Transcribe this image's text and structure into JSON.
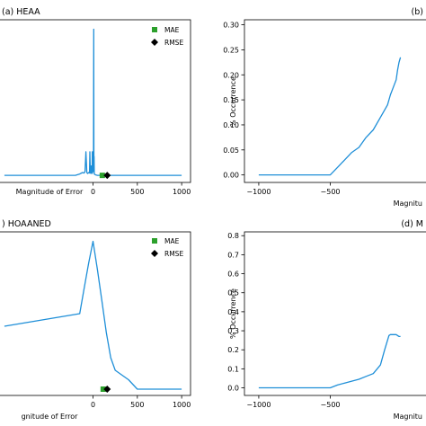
{
  "chart_data": [
    {
      "type": "line",
      "title": "(a) HEAA",
      "xlabel": "Magnitude of Error",
      "ylabel": "",
      "xlim": [
        -1100,
        1100
      ],
      "ylim": [
        -0.015,
        0.33
      ],
      "xticks": [
        0,
        500,
        1000
      ],
      "xtick_labels": [
        "0",
        "500",
        "1000"
      ],
      "yticks": [],
      "grid": false,
      "legend_position": "top-right",
      "series": [
        {
          "color": "#1f8fd8",
          "x": [
            -1000,
            -300,
            -200,
            -150,
            -120,
            -100,
            -90,
            -80,
            -70,
            -60,
            -50,
            -40,
            -35,
            -30,
            -25,
            -20,
            -15,
            -10,
            -8,
            -5,
            -2,
            0,
            2,
            5,
            8,
            10,
            12,
            14,
            20,
            30,
            50,
            100,
            200,
            500,
            1000
          ],
          "y": [
            0,
            0,
            0,
            0.003,
            0.006,
            0.005,
            0.008,
            0.05,
            0.006,
            0.004,
            0.006,
            0.005,
            0.05,
            0.006,
            0.004,
            0.02,
            0.006,
            0.004,
            0.05,
            0.006,
            0.02,
            0.008,
            0.05,
            0.03,
            0.31,
            0.008,
            0.04,
            0.003,
            0.002,
            0.001,
            0,
            0,
            0,
            0,
            0
          ]
        }
      ],
      "markers": [
        {
          "name": "MAE",
          "x": 105,
          "y": 0,
          "color": "#2ca02c",
          "shape": "square"
        },
        {
          "name": "RMSE",
          "x": 160,
          "y": 0,
          "color": "#000000",
          "shape": "diamond"
        }
      ]
    },
    {
      "type": "line",
      "title": "(b)",
      "xlabel": "Magnitu",
      "ylabel": "% Occurrence",
      "xlim": [
        -1100,
        200
      ],
      "ylim": [
        -0.015,
        0.31
      ],
      "xticks": [
        -1000,
        -500
      ],
      "xtick_labels": [
        "−1000",
        "−500"
      ],
      "yticks": [
        0.0,
        0.05,
        0.1,
        0.15,
        0.2,
        0.25,
        0.3
      ],
      "ytick_labels": [
        "0.00",
        "0.05",
        "0.10",
        "0.15",
        "0.20",
        "0.25",
        "0.30"
      ],
      "grid": false,
      "series": [
        {
          "color": "#1f8fd8",
          "x": [
            -1000,
            -500,
            -450,
            -400,
            -350,
            -300,
            -250,
            -200,
            -150,
            -100,
            -80,
            -60,
            -40,
            -30,
            -20,
            -10
          ],
          "y": [
            0,
            0,
            0.015,
            0.03,
            0.045,
            0.055,
            0.075,
            0.09,
            0.115,
            0.14,
            0.16,
            0.175,
            0.19,
            0.21,
            0.225,
            0.235
          ]
        }
      ]
    },
    {
      "type": "line",
      "title": ") HOAANED",
      "xlabel": "gnitude of Error",
      "ylabel": "",
      "xlim": [
        -1100,
        1100
      ],
      "ylim": [
        -0.01,
        0.25
      ],
      "xticks": [
        0,
        500,
        1000
      ],
      "xtick_labels": [
        "0",
        "500",
        "1000"
      ],
      "yticks": [],
      "grid": false,
      "legend_position": "top-right",
      "series": [
        {
          "color": "#1f8fd8",
          "x": [
            -1000,
            -150,
            -100,
            -50,
            0,
            50,
            100,
            150,
            200,
            250,
            300,
            400,
            500,
            600,
            700,
            800,
            900,
            1000
          ],
          "y": [
            0.1,
            0.12,
            0.16,
            0.2,
            0.235,
            0.19,
            0.14,
            0.09,
            0.05,
            0.03,
            0.025,
            0.015,
            0.0,
            0.0,
            0.0,
            0.0,
            0.0,
            0.0
          ]
        }
      ],
      "markers": [
        {
          "name": "MAE",
          "x": 115,
          "y": 0,
          "color": "#2ca02c",
          "shape": "square"
        },
        {
          "name": "RMSE",
          "x": 160,
          "y": 0,
          "color": "#000000",
          "shape": "diamond"
        }
      ]
    },
    {
      "type": "line",
      "title": "(d) M",
      "xlabel": "Magnitu",
      "ylabel": "% Occurrence",
      "xlim": [
        -1100,
        200
      ],
      "ylim": [
        -0.04,
        0.82
      ],
      "xticks": [
        -1000,
        -500
      ],
      "xtick_labels": [
        "−1000",
        "−500"
      ],
      "yticks": [
        0.0,
        0.1,
        0.2,
        0.3,
        0.4,
        0.5,
        0.6,
        0.7,
        0.8
      ],
      "ytick_labels": [
        "0.0",
        "0.1",
        "0.2",
        "0.3",
        "0.4",
        "0.5",
        "0.6",
        "0.7",
        "0.8"
      ],
      "grid": false,
      "series": [
        {
          "color": "#1f8fd8",
          "x": [
            -1000,
            -500,
            -450,
            -400,
            -350,
            -300,
            -250,
            -200,
            -150,
            -120,
            -100,
            -90,
            -80,
            -60,
            -40,
            -20,
            -10
          ],
          "y": [
            0,
            0,
            0.015,
            0.025,
            0.035,
            0.045,
            0.06,
            0.075,
            0.12,
            0.2,
            0.25,
            0.275,
            0.28,
            0.28,
            0.28,
            0.27,
            0.27
          ]
        }
      ]
    }
  ]
}
